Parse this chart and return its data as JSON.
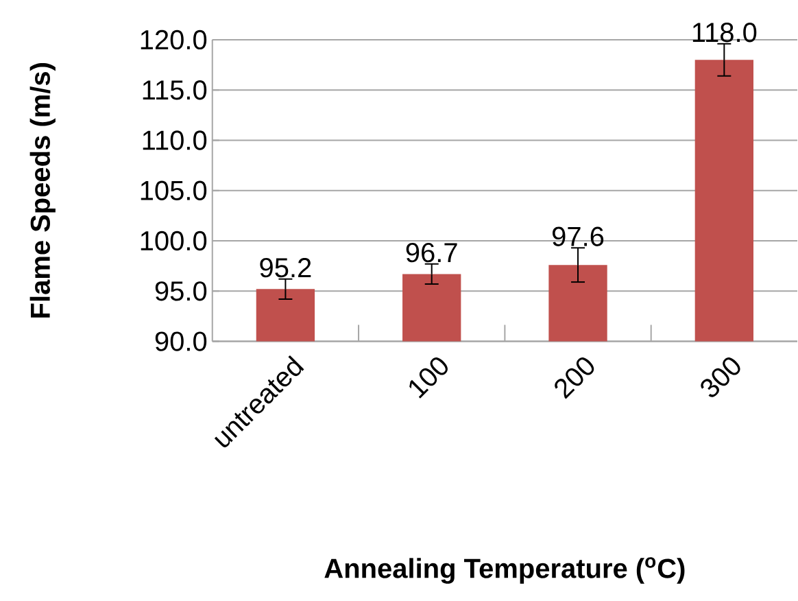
{
  "chart_data": {
    "type": "bar",
    "xlabel": "Annealing Temperature ($^{o}$C)",
    "ylabel": "Flame Speeds (m/s)",
    "categories": [
      "untreated",
      "100",
      "200",
      "300"
    ],
    "values": [
      95.2,
      96.7,
      97.6,
      118.0
    ],
    "errors": [
      1.0,
      1.0,
      1.7,
      1.6
    ],
    "value_labels": [
      "95.2",
      "96.7",
      "97.6",
      "118.0"
    ],
    "color": "#c0504d",
    "ylim": [
      90,
      120
    ],
    "yticks": [
      {
        "value": 90,
        "label": "90.0"
      },
      {
        "value": 95,
        "label": "95.0"
      },
      {
        "value": 100,
        "label": "100.0"
      },
      {
        "value": 105,
        "label": "105.0"
      },
      {
        "value": 110,
        "label": "110.0"
      },
      {
        "value": 115,
        "label": "115.0"
      },
      {
        "value": 120,
        "label": "120.0"
      }
    ],
    "grid": "y"
  }
}
